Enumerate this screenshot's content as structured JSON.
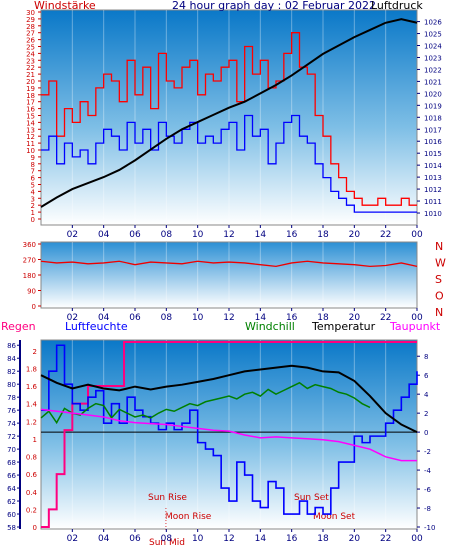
{
  "header": {
    "left_label": "Windstärke",
    "title": "24 hour graph day : 02 Februar 2022",
    "right_label": "Luftdruck"
  },
  "labels": {
    "regen": "Regen",
    "luftfeuchte": "Luftfeuchte",
    "windchill": "Windchill",
    "temperatur": "Temperatur",
    "taupunkt": "Taupunkt",
    "sun_rise": "Sun Rise",
    "sun_set": "Sun Set",
    "moon_rise": "Moon Rise",
    "moon_set": "Moon Set",
    "sun_mid": "Sun Mid"
  },
  "colors": {
    "wind_gust": "#ff0000",
    "wind_avg": "#0000ff",
    "pressure": "#000000",
    "wind_dir": "#ee0000",
    "rain": "#ff0080",
    "humidity": "#0000ff",
    "windchill": "#008000",
    "temperature": "#000000",
    "dewpoint": "#ff00ff",
    "sun_moon_text": "#cc0000",
    "axis_left": "#cc0000",
    "axis_right": "#000080"
  },
  "chart_data": [
    {
      "type": "line",
      "title": "Windstärke / Luftdruck",
      "x_ticks": [
        "02",
        "04",
        "06",
        "08",
        "10",
        "12",
        "14",
        "16",
        "18",
        "20",
        "22",
        "00"
      ],
      "y_left_ticks": [
        "0",
        "1",
        "2",
        "3",
        "4",
        "5",
        "6",
        "7",
        "8",
        "9",
        "10",
        "11",
        "12",
        "13",
        "14",
        "15",
        "16",
        "17",
        "18",
        "19",
        "20",
        "21",
        "22",
        "23",
        "24",
        "25",
        "26",
        "27",
        "28",
        "29",
        "30"
      ],
      "y_right_ticks": [
        "1010",
        "1011",
        "1012",
        "1013",
        "1014",
        "1015",
        "1016",
        "1017",
        "1018",
        "1019",
        "1020",
        "1021",
        "1022",
        "1023",
        "1024",
        "1025",
        "1026"
      ],
      "y_left_range": [
        0,
        30
      ],
      "y_right_range": [
        1009.5,
        1026.8
      ],
      "x_range_hours": [
        0,
        24
      ],
      "series": [
        {
          "name": "Windstärke",
          "axis": "left",
          "color_key": "wind_gust",
          "x": [
            0.0,
            0.5,
            1.0,
            1.5,
            2.0,
            2.5,
            3.0,
            3.5,
            4.0,
            4.5,
            5.0,
            5.5,
            6.0,
            6.5,
            7.0,
            7.5,
            8.0,
            8.5,
            9.0,
            9.5,
            10.0,
            10.5,
            11.0,
            11.5,
            12.0,
            12.5,
            13.0,
            13.5,
            14.0,
            14.5,
            15.0,
            15.5,
            16.0,
            16.5,
            17.0,
            17.5,
            18.0,
            18.5,
            19.0,
            19.5,
            20.0,
            20.5,
            21.0,
            21.5,
            22.0,
            22.5,
            23.0,
            23.5,
            24.0
          ],
          "values": [
            18,
            20,
            12,
            16,
            14,
            17,
            15,
            19,
            21,
            20,
            17,
            23,
            18,
            22,
            16,
            24,
            20,
            19,
            22,
            23,
            18,
            21,
            20,
            22,
            23,
            17,
            25,
            21,
            23,
            19,
            20,
            24,
            27,
            22,
            21,
            15,
            12,
            8,
            6,
            4,
            3,
            2,
            2,
            3,
            2,
            2,
            3,
            2,
            2
          ]
        },
        {
          "name": "Windgeschwindigkeit",
          "axis": "left",
          "color_key": "wind_avg",
          "x": [
            0.0,
            0.5,
            1.0,
            1.5,
            2.0,
            2.5,
            3.0,
            3.5,
            4.0,
            4.5,
            5.0,
            5.5,
            6.0,
            6.5,
            7.0,
            7.5,
            8.0,
            8.5,
            9.0,
            9.5,
            10.0,
            10.5,
            11.0,
            11.5,
            12.0,
            12.5,
            13.0,
            13.5,
            14.0,
            14.5,
            15.0,
            15.5,
            16.0,
            16.5,
            17.0,
            17.5,
            18.0,
            18.5,
            19.0,
            19.5,
            20.0,
            20.5,
            21.0,
            21.5,
            22.0,
            22.5,
            23.0,
            23.5,
            24.0
          ],
          "values": [
            10,
            12,
            8,
            11,
            9,
            10,
            8,
            11,
            13,
            12,
            10,
            14,
            11,
            13,
            10,
            14,
            12,
            11,
            13,
            14,
            11,
            12,
            11,
            13,
            14,
            10,
            15,
            12,
            13,
            8,
            11,
            14,
            15,
            12,
            11,
            8,
            6,
            4,
            3,
            2,
            1,
            1,
            1,
            1,
            1,
            1,
            1,
            1,
            1
          ]
        },
        {
          "name": "Luftdruck",
          "axis": "right",
          "color_key": "pressure",
          "x": [
            0,
            1,
            2,
            3,
            4,
            5,
            6,
            7,
            8,
            9,
            10,
            11,
            12,
            13,
            14,
            15,
            16,
            17,
            18,
            19,
            20,
            21,
            22,
            23,
            24
          ],
          "values": [
            1010.5,
            1011.3,
            1012.0,
            1012.5,
            1013.0,
            1013.6,
            1014.4,
            1015.3,
            1016.2,
            1017.0,
            1017.6,
            1018.2,
            1018.8,
            1019.3,
            1020.0,
            1020.7,
            1021.5,
            1022.4,
            1023.3,
            1024.0,
            1024.7,
            1025.3,
            1025.9,
            1026.2,
            1025.9
          ]
        }
      ]
    },
    {
      "type": "scatter",
      "title": "Windrichtung",
      "x_ticks": [
        "02",
        "04",
        "06",
        "08",
        "10",
        "12",
        "14",
        "16",
        "18",
        "20",
        "22",
        "00"
      ],
      "y_left_ticks": [
        "0",
        "90",
        "180",
        "270",
        "360"
      ],
      "y_right_ticks": [
        "N",
        "W",
        "S",
        "O",
        "N"
      ],
      "y_range": [
        0,
        360
      ],
      "x_range_hours": [
        0,
        24
      ],
      "series": [
        {
          "name": "Windrichtung",
          "color_key": "wind_dir",
          "x": [
            0,
            1,
            2,
            3,
            4,
            5,
            6,
            7,
            8,
            9,
            10,
            11,
            12,
            13,
            14,
            15,
            16,
            17,
            18,
            19,
            20,
            21,
            22,
            23,
            24
          ],
          "values": [
            260,
            250,
            255,
            245,
            250,
            260,
            240,
            255,
            250,
            245,
            260,
            250,
            255,
            250,
            240,
            230,
            250,
            260,
            250,
            245,
            240,
            230,
            235,
            250,
            230
          ]
        }
      ]
    },
    {
      "type": "line",
      "title": "Regen / Luftfeuchte / Temperatur",
      "x_ticks": [
        "02",
        "04",
        "06",
        "08",
        "10",
        "12",
        "14",
        "16",
        "18",
        "20",
        "22",
        "00"
      ],
      "y_rain_ticks": [
        "0",
        "0.1",
        "0.2",
        "0.3",
        "0.4",
        "0.5",
        "0.6",
        "0.7",
        "0.8",
        "0.9",
        "1",
        "1.1",
        "1.2",
        "1.3",
        "1.4",
        "1.5",
        "1.6",
        "1.7",
        "1.8",
        "1.9",
        "2"
      ],
      "y_humidity_ticks": [
        "58",
        "60",
        "62",
        "64",
        "66",
        "68",
        "70",
        "72",
        "74",
        "76",
        "78",
        "80",
        "82",
        "84",
        "86"
      ],
      "y_temp_ticks": [
        "-10",
        "-8",
        "-6",
        "-4",
        "-2",
        "0",
        "2",
        "4",
        "6",
        "8"
      ],
      "y_rain_range": [
        0,
        2.1
      ],
      "y_humidity_range": [
        58,
        86.5
      ],
      "y_temp_range": [
        -10,
        9.5
      ],
      "x_range_hours": [
        0,
        24
      ],
      "series": [
        {
          "name": "Regen",
          "axis": "rain",
          "color_key": "rain",
          "x": [
            0,
            0.5,
            1.0,
            1.5,
            2.0,
            3.0,
            4.0,
            5.0,
            5.3,
            6.0,
            8.0,
            10.0,
            12.0,
            14.0,
            16.0,
            18.0,
            20.0,
            22.0,
            24.0
          ],
          "values": [
            0,
            0.2,
            0.6,
            1.1,
            1.4,
            1.6,
            1.6,
            1.6,
            2.1,
            2.1,
            2.1,
            2.1,
            2.1,
            2.1,
            2.1,
            2.1,
            2.1,
            2.1,
            2.1
          ]
        },
        {
          "name": "Luftfeuchte",
          "axis": "humidity",
          "color_key": "humidity",
          "x": [
            0,
            0.5,
            1.0,
            1.5,
            2.0,
            2.5,
            3.0,
            3.5,
            4.0,
            4.5,
            5.0,
            5.5,
            6.0,
            6.5,
            7.0,
            7.5,
            8.0,
            8.5,
            9.0,
            9.5,
            10.0,
            10.5,
            11.0,
            11.5,
            12.0,
            12.5,
            13.0,
            13.5,
            14.0,
            14.5,
            15.0,
            15.5,
            16.0,
            16.5,
            17.0,
            17.5,
            18.0,
            18.5,
            19.0,
            19.5,
            20.0,
            20.5,
            21.0,
            21.5,
            22.0,
            22.5,
            23.0,
            23.5,
            24.0
          ],
          "values": [
            76,
            82,
            86,
            80,
            77,
            76,
            78,
            79,
            74,
            77,
            74,
            78,
            76,
            75,
            74,
            73,
            74,
            73,
            74,
            76,
            71,
            70,
            69,
            64,
            62,
            68,
            66,
            62,
            61,
            65,
            64,
            60,
            60,
            62,
            60,
            61,
            60,
            64,
            68,
            68,
            72,
            71,
            72,
            72,
            74,
            76,
            78,
            80,
            82
          ]
        },
        {
          "name": "Windchill",
          "axis": "temp",
          "color_key": "windchill",
          "x": [
            0,
            0.5,
            1.0,
            1.5,
            2.0,
            2.5,
            3.0,
            3.5,
            4.0,
            4.5,
            5.0,
            5.5,
            6.0,
            6.5,
            7.0,
            7.5,
            8.0,
            8.5,
            9.0,
            9.5,
            10.0,
            10.5,
            11.0,
            11.5,
            12.0,
            12.5,
            13.0,
            13.5,
            14.0,
            14.5,
            15.0,
            15.5,
            16.0,
            16.5,
            17.0,
            17.5,
            18.0,
            18.5,
            19.0,
            19.5,
            20.0,
            20.5,
            21.0
          ],
          "values": [
            1.5,
            2.2,
            1.0,
            2.5,
            2.0,
            1.8,
            2.5,
            3.0,
            2.8,
            1.5,
            2.4,
            2.0,
            1.6,
            1.8,
            1.5,
            2.0,
            2.4,
            2.2,
            2.6,
            3.0,
            2.8,
            3.2,
            3.4,
            3.6,
            3.8,
            3.5,
            4.0,
            4.2,
            3.8,
            4.5,
            4.0,
            4.4,
            4.8,
            5.2,
            4.6,
            5.0,
            4.8,
            4.6,
            4.2,
            4.0,
            3.6,
            3.0,
            2.6
          ]
        },
        {
          "name": "Temperatur",
          "axis": "temp",
          "color_key": "temperature",
          "x": [
            0,
            1,
            2,
            3,
            4,
            5,
            6,
            7,
            8,
            9,
            10,
            11,
            12,
            13,
            14,
            15,
            16,
            17,
            18,
            19,
            20,
            21,
            22,
            23,
            24
          ],
          "values": [
            6.0,
            5.2,
            4.6,
            5.0,
            4.6,
            4.4,
            4.8,
            4.5,
            4.8,
            5.0,
            5.3,
            5.6,
            6.0,
            6.4,
            6.6,
            6.8,
            7.0,
            6.8,
            6.4,
            6.3,
            5.4,
            3.8,
            2.0,
            0.8,
            0.0
          ]
        },
        {
          "name": "Taupunkt",
          "axis": "temp",
          "color_key": "dewpoint",
          "x": [
            0,
            1,
            2,
            3,
            4,
            5,
            6,
            7,
            8,
            9,
            10,
            11,
            12,
            13,
            14,
            15,
            16,
            17,
            18,
            19,
            20,
            21,
            22,
            23,
            24
          ],
          "values": [
            2.4,
            2.2,
            2.0,
            1.8,
            1.6,
            1.2,
            1.0,
            0.9,
            0.8,
            0.6,
            0.4,
            0.2,
            0.1,
            -0.3,
            -0.6,
            -0.5,
            -0.6,
            -0.7,
            -0.8,
            -1.0,
            -1.4,
            -1.8,
            -2.6,
            -3.0,
            -3.0
          ]
        }
      ]
    }
  ]
}
